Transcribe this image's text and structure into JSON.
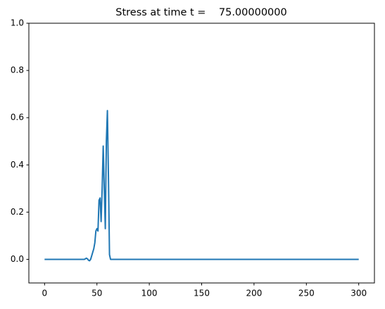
{
  "chart_data": {
    "type": "line",
    "title": "Stress at time t =    75.00000000",
    "x": [
      0,
      10,
      20,
      30,
      38,
      40,
      41,
      42,
      43,
      44,
      45,
      46,
      47,
      48,
      49,
      50,
      51,
      52,
      53,
      54,
      55,
      56,
      57,
      58,
      59,
      60,
      61,
      62,
      63,
      65,
      100,
      150,
      200,
      250,
      300
    ],
    "series": [
      {
        "color": "#1f77b4",
        "values": [
          0,
          0,
          0,
          0,
          0,
          0.005,
          0.002,
          -0.004,
          -0.006,
          0,
          0.015,
          0.03,
          0.045,
          0.07,
          0.12,
          0.13,
          0.12,
          0.25,
          0.26,
          0.16,
          0.3,
          0.48,
          0.3,
          0.13,
          0.5,
          0.63,
          0.35,
          0.02,
          0,
          0,
          0,
          0,
          0,
          0,
          0
        ]
      }
    ],
    "xlim": [
      -15,
      315
    ],
    "ylim": [
      -0.1,
      1.0
    ],
    "xticks": [
      0,
      50,
      100,
      150,
      200,
      250,
      300
    ],
    "yticks": [
      {
        "value": 0,
        "label": "0.0"
      },
      {
        "value": 0.2,
        "label": "0.2"
      },
      {
        "value": 0.4,
        "label": "0.4"
      },
      {
        "value": 0.6,
        "label": "0.6"
      },
      {
        "value": 0.8,
        "label": "0.8"
      },
      {
        "value": 1.0,
        "label": "1.0"
      }
    ]
  }
}
